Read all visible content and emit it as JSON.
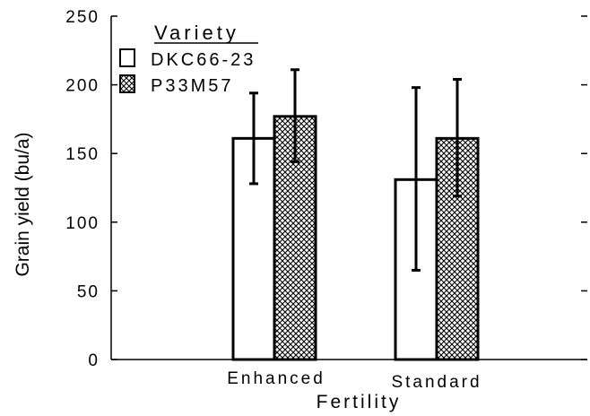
{
  "chart_data": {
    "type": "bar",
    "title": "",
    "xlabel": "Fertility",
    "ylabel": "Grain yield (bu/a)",
    "ylim": [
      0,
      250
    ],
    "yticks": [
      0,
      50,
      100,
      150,
      200,
      250
    ],
    "ytick_labels": [
      "0",
      "50",
      "100",
      "150",
      "200",
      "250"
    ],
    "categories": [
      "Enhanced",
      "Standard"
    ],
    "legend": {
      "title": "Variety",
      "placement": "top-left"
    },
    "grid": false,
    "series": [
      {
        "name": "DKC66-23",
        "values": [
          161,
          131
        ],
        "error_low": [
          128,
          65
        ],
        "error_high": [
          194,
          198
        ],
        "fill": "white"
      },
      {
        "name": "P33M57",
        "values": [
          177,
          161
        ],
        "error_low": [
          144,
          119
        ],
        "error_high": [
          211,
          204
        ],
        "fill": "crosshatch"
      }
    ]
  }
}
